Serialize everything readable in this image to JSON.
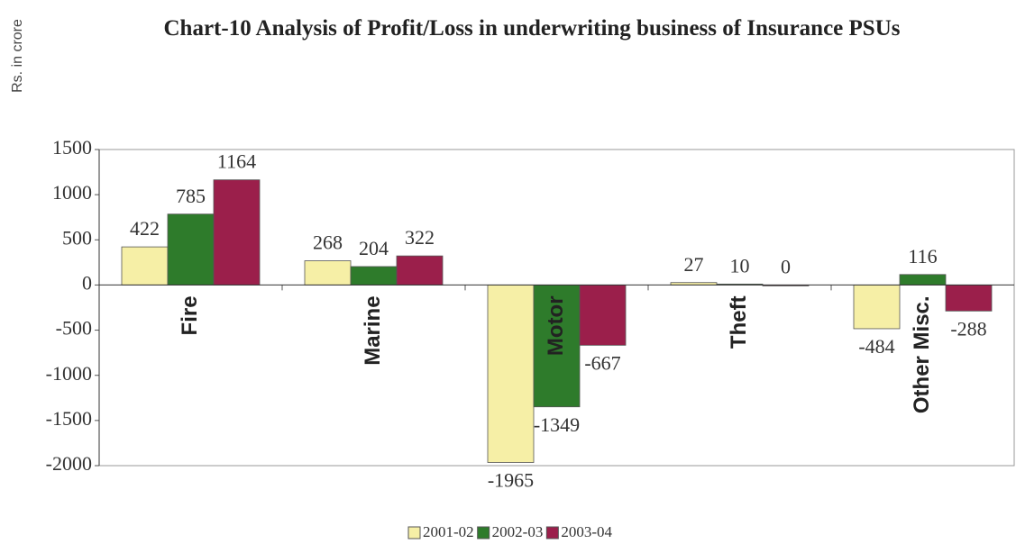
{
  "chart_data": {
    "type": "bar",
    "title": "Chart-10  Analysis of Profit/Loss in underwriting business of Insurance PSUs",
    "y_label": "Rs. in crore",
    "categories": [
      "Fire",
      "Marine",
      "Motor",
      "Theft",
      "Other Misc."
    ],
    "series": [
      {
        "name": "2001-02",
        "color": "#f6efa6",
        "values": [
          422,
          268,
          -1965,
          27,
          -484
        ]
      },
      {
        "name": "2002-03",
        "color": "#2e7b2b",
        "values": [
          785,
          204,
          -1349,
          10,
          116
        ]
      },
      {
        "name": "2003-04",
        "color": "#9b1f4b",
        "values": [
          1164,
          322,
          -667,
          0,
          -288
        ]
      }
    ],
    "ylim": [
      -2000,
      1500
    ],
    "yticks": [
      -2000,
      -1500,
      -1000,
      -500,
      0,
      500,
      1000,
      1500
    ],
    "legend": "bottom"
  }
}
